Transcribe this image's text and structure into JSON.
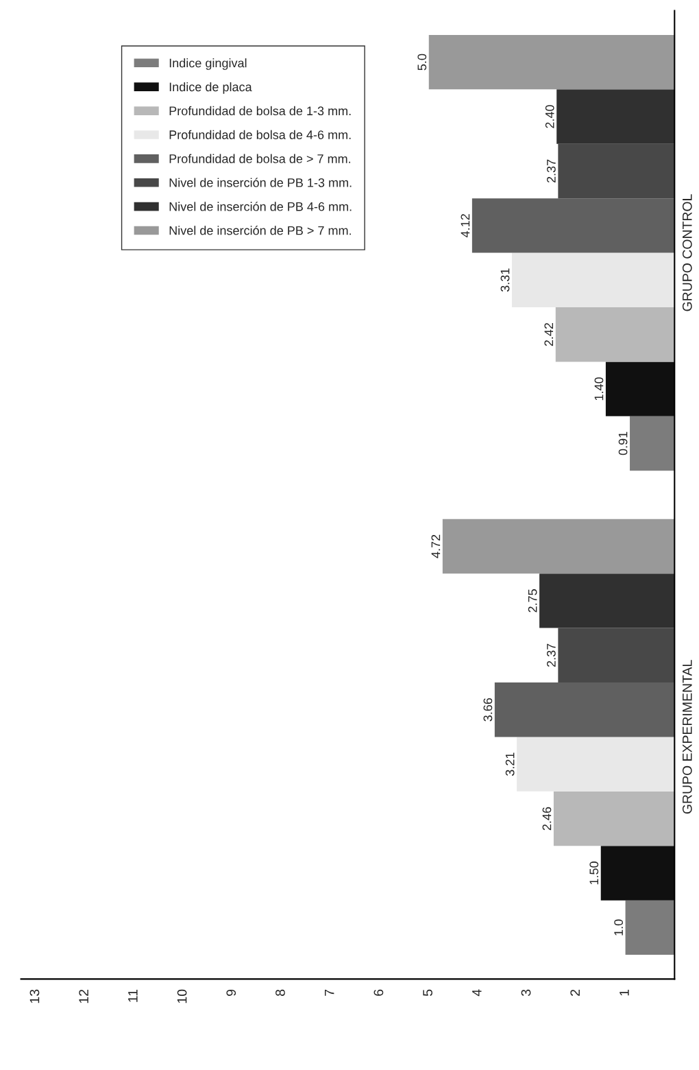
{
  "chart_data": {
    "type": "bar",
    "orientation": "horizontal",
    "categories": [
      "GRUPO CONTROL",
      "GRUPO EXPERIMENTAL"
    ],
    "series": [
      {
        "name": "Indice gingival",
        "color": "#7c7c7c",
        "values": [
          0.91,
          1.0
        ]
      },
      {
        "name": "Indice de placa",
        "color": "#101010",
        "values": [
          1.4,
          1.5
        ]
      },
      {
        "name": "Profundidad de bolsa de 1-3 mm.",
        "color": "#b8b8b8",
        "values": [
          2.42,
          2.46
        ]
      },
      {
        "name": "Profundidad de bolsa de 4-6 mm.",
        "color": "#e8e8e8",
        "values": [
          3.31,
          3.21
        ]
      },
      {
        "name": "Profundidad de bolsa de > 7 mm.",
        "color": "#606060",
        "values": [
          4.12,
          3.66
        ]
      },
      {
        "name": "Nivel de inserción de PB 1-3 mm.",
        "color": "#484848",
        "values": [
          2.37,
          2.37
        ]
      },
      {
        "name": "Nivel de inserción de PB 4-6 mm.",
        "color": "#303030",
        "values": [
          2.4,
          2.75
        ]
      },
      {
        "name": "Nivel de inserción de PB > 7 mm.",
        "color": "#999999",
        "values": [
          5.0,
          4.72
        ]
      }
    ],
    "value_labels": [
      [
        "0.91",
        "1.0"
      ],
      [
        "1.40",
        "1.50"
      ],
      [
        "2.42",
        "2.46"
      ],
      [
        "3.31",
        "3.21"
      ],
      [
        "4.12",
        "3.66"
      ],
      [
        "2.37",
        "2.37"
      ],
      [
        "2.40",
        "2.75"
      ],
      [
        "5.0",
        "4.72"
      ]
    ],
    "xlim": [
      13.3,
      0
    ],
    "xticks": [
      1,
      2,
      3,
      4,
      5,
      6,
      7,
      8,
      9,
      10,
      11,
      12,
      13
    ],
    "grid": false,
    "legend": "top"
  }
}
